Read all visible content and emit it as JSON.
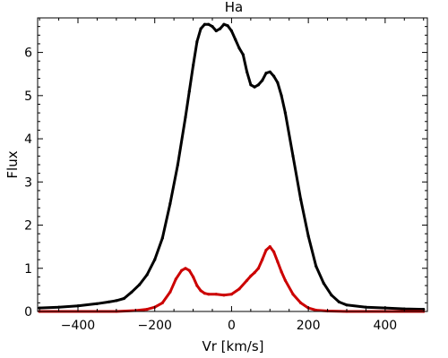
{
  "chart_data": {
    "type": "line",
    "title": "Ha",
    "xlabel": "Vr [km/s]",
    "ylabel": "Flux",
    "xlim": [
      -505,
      510
    ],
    "ylim": [
      0,
      6.8
    ],
    "x_ticks": [
      -400,
      -200,
      0,
      200,
      400
    ],
    "x_tick_labels": [
      "−400",
      "−200",
      "0",
      "200",
      "400"
    ],
    "y_ticks": [
      0,
      1,
      2,
      3,
      4,
      5,
      6
    ],
    "y_tick_labels": [
      "0",
      "1",
      "2",
      "3",
      "4",
      "5",
      "6"
    ],
    "grid": false,
    "legend": "none",
    "series": [
      {
        "color": "#000000",
        "x": [
          -500,
          -450,
          -400,
          -350,
          -320,
          -300,
          -280,
          -260,
          -240,
          -220,
          -200,
          -180,
          -160,
          -140,
          -120,
          -110,
          -100,
          -90,
          -80,
          -70,
          -60,
          -50,
          -40,
          -30,
          -20,
          -10,
          0,
          10,
          20,
          30,
          40,
          50,
          60,
          70,
          80,
          90,
          100,
          110,
          120,
          130,
          140,
          160,
          180,
          200,
          220,
          240,
          260,
          280,
          300,
          350,
          400,
          450,
          500
        ],
        "y": [
          0.08,
          0.1,
          0.13,
          0.18,
          0.22,
          0.25,
          0.3,
          0.45,
          0.62,
          0.85,
          1.2,
          1.7,
          2.5,
          3.4,
          4.5,
          5.1,
          5.7,
          6.25,
          6.55,
          6.65,
          6.65,
          6.6,
          6.5,
          6.55,
          6.65,
          6.62,
          6.5,
          6.3,
          6.1,
          5.95,
          5.55,
          5.25,
          5.2,
          5.25,
          5.35,
          5.52,
          5.55,
          5.45,
          5.3,
          5.0,
          4.6,
          3.6,
          2.6,
          1.75,
          1.05,
          0.65,
          0.38,
          0.22,
          0.15,
          0.1,
          0.08,
          0.06,
          0.05
        ]
      },
      {
        "color": "#cc0000",
        "x": [
          -500,
          -300,
          -250,
          -220,
          -200,
          -180,
          -160,
          -145,
          -130,
          -120,
          -110,
          -100,
          -90,
          -80,
          -70,
          -60,
          -40,
          -20,
          0,
          20,
          40,
          50,
          60,
          70,
          80,
          90,
          100,
          110,
          120,
          130,
          140,
          160,
          180,
          200,
          220,
          250,
          300,
          500
        ],
        "y": [
          0.0,
          0.0,
          0.02,
          0.05,
          0.1,
          0.2,
          0.45,
          0.75,
          0.95,
          1.0,
          0.95,
          0.8,
          0.6,
          0.48,
          0.42,
          0.4,
          0.4,
          0.38,
          0.4,
          0.52,
          0.72,
          0.82,
          0.9,
          1.0,
          1.2,
          1.42,
          1.5,
          1.38,
          1.15,
          0.92,
          0.72,
          0.4,
          0.2,
          0.08,
          0.03,
          0.01,
          0.0,
          0.0
        ]
      }
    ]
  }
}
